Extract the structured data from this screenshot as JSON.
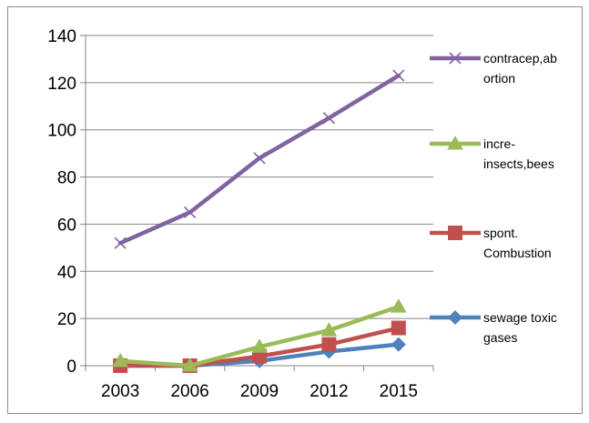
{
  "chart_data": {
    "type": "line",
    "title": "",
    "xlabel": "",
    "ylabel": "",
    "categories": [
      "2003",
      "2006",
      "2009",
      "2012",
      "2015"
    ],
    "ylim": [
      0,
      140
    ],
    "yticks": [
      0,
      20,
      40,
      60,
      80,
      100,
      120,
      140
    ],
    "grid": "horizontal",
    "legend_position": "right",
    "series": [
      {
        "name_lines": [
          "contracep,ab",
          "ortion"
        ],
        "marker": "x",
        "color": "#8064A2",
        "values": [
          52,
          65,
          88,
          105,
          123
        ]
      },
      {
        "name_lines": [
          "incre-",
          "insects,bees"
        ],
        "marker": "triangle",
        "color": "#9BBB59",
        "values": [
          2,
          0,
          8,
          15,
          25
        ]
      },
      {
        "name_lines": [
          "spont.",
          "Combustion"
        ],
        "marker": "square",
        "color": "#C0504D",
        "values": [
          0,
          0,
          4,
          9,
          16
        ]
      },
      {
        "name_lines": [
          "sewage toxic",
          "gases"
        ],
        "marker": "diamond",
        "color": "#4F81BD",
        "values": [
          0,
          0,
          2,
          6,
          9
        ]
      }
    ]
  }
}
